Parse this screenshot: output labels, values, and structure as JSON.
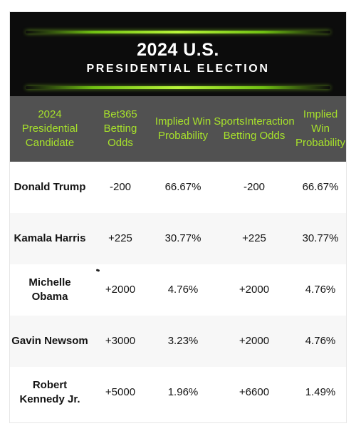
{
  "banner": {
    "title": "2024 U.S.",
    "subtitle": "PRESIDENTIAL ELECTION"
  },
  "colors": {
    "banner_bg": "#0c0c0c",
    "header_bg": "#515151",
    "header_text": "#a7e22b",
    "glow": "#b9f53a",
    "row_alt_bg": "#f7f7f7"
  },
  "table": {
    "columns": [
      "2024 Presidential Candidate",
      "Bet365 Betting Odds",
      "Implied Win Probability",
      "SportsInteraction Betting Odds",
      "Implied Win Probability"
    ],
    "rows": [
      [
        "Donald Trump",
        "-200",
        "66.67%",
        "-200",
        "66.67%"
      ],
      [
        "Kamala Harris",
        "+225",
        "30.77%",
        "+225",
        "30.77%"
      ],
      [
        "Michelle Obama",
        "+2000",
        "4.76%",
        "+2000",
        "4.76%"
      ],
      [
        "Gavin Newsom",
        "+3000",
        "3.23%",
        "+2000",
        "4.76%"
      ],
      [
        "Robert Kennedy Jr.",
        "+5000",
        "1.96%",
        "+6600",
        "1.49%"
      ]
    ]
  }
}
